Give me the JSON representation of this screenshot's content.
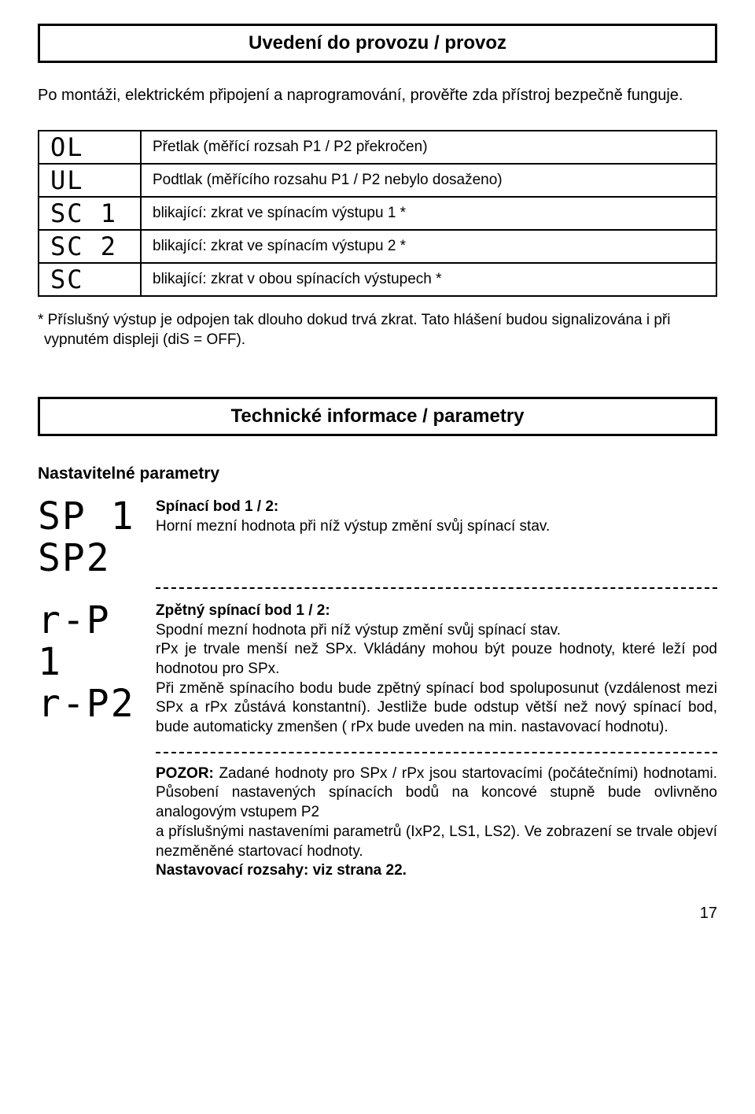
{
  "title_box": "Uvedení do provozu / provoz",
  "intro": "Po montáži, elektrickém připojení a naprogramování, prověřte zda přístroj bezpečně funguje.",
  "codes": {
    "rows": [
      {
        "code": "OL",
        "desc": "Přetlak (měřící rozsah P1 / P2 překročen)"
      },
      {
        "code": "UL",
        "desc": "Podtlak (měřícího rozsahu P1 / P2 nebylo dosaženo)"
      },
      {
        "code": "SC 1",
        "desc": "blikající: zkrat ve spínacím výstupu 1 *"
      },
      {
        "code": "SC 2",
        "desc": "blikající: zkrat ve spínacím výstupu 2 *"
      },
      {
        "code": "SC",
        "desc": "blikající: zkrat v obou spínacích výstupech *"
      }
    ]
  },
  "codes_note": "* Příslušný výstup je odpojen tak dlouho dokud trvá zkrat. Tato hlášení budou signalizována i při vypnutém displeji (diS = OFF).",
  "section2_title": "Technické informace / parametry",
  "subhead": "Nastavitelné parametry",
  "param1": {
    "code1": "SP 1",
    "code2": "SP2",
    "heading": "Spínací bod 1 / 2:",
    "text": "Horní mezní hodnota při níž výstup změní svůj spínací stav."
  },
  "param2": {
    "code1": "r-P 1",
    "code2": "r-P2",
    "heading": "Zpětný spínací bod 1 / 2:",
    "text1": "Spodní mezní hodnota při níž výstup změní svůj spínací stav.",
    "text2": "rPx je trvale menší než SPx. Vkládány mohou být pouze hodnoty, které leží pod hodnotou pro SPx.",
    "text3": "Při změně spínacího bodu bude zpětný spínací bod spoluposunut (vzdálenost mezi SPx a rPx zůstává konstantní). Jestliže bude odstup větší než nový spínací bod, bude automaticky zmenšen ( rPx bude uveden na min. nastavovací hodnotu)."
  },
  "warn": {
    "prefix": "POZOR:",
    "line1": " Zadané hodnoty pro SPx / rPx jsou startovacími (počátečními) hodnotami. Působení nastavených spínacích bodů na koncové stupně bude ovlivněno analogovým vstupem  P2",
    "line2": "a příslušnými nastaveními parametrů (IxP2, LS1, LS2). Ve zobrazení se trvale objeví nezměněné startovací hodnoty.",
    "line3": "Nastavovací rozsahy: viz strana 22."
  },
  "page_number": "17"
}
